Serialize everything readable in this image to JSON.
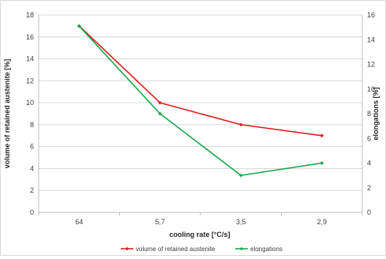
{
  "chart_data": {
    "type": "line",
    "categories": [
      "64",
      "5,7",
      "3,5",
      "2,9"
    ],
    "xlabel": "cooling rate [°C/s]",
    "ylabel_left": "volume of retained austenite [%]",
    "ylabel_right": "elongations [%]",
    "ylim_left": [
      0,
      18
    ],
    "ylim_right": [
      0,
      16
    ],
    "yticks_left": [
      "0",
      "2",
      "4",
      "6",
      "8",
      "10",
      "12",
      "14",
      "16",
      "18"
    ],
    "yticks_right": [
      "0",
      "2",
      "4",
      "6",
      "8",
      "10",
      "12",
      "14",
      "16"
    ],
    "grid": true,
    "legend_position": "bottom",
    "series": [
      {
        "name": "volume of retained austenite",
        "axis": "left",
        "color": "#e01e1e",
        "marker": "diamond",
        "values": [
          17,
          10,
          8,
          7
        ]
      },
      {
        "name": "elongations",
        "axis": "right",
        "color": "#1aa84a",
        "marker": "diamond",
        "values": [
          15.1,
          8,
          3,
          4
        ]
      }
    ]
  }
}
